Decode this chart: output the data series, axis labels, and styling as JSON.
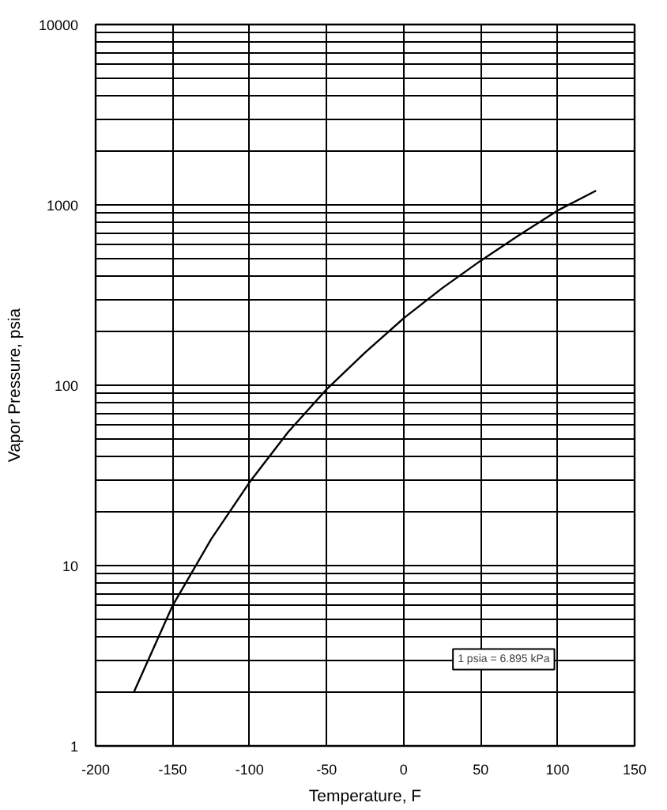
{
  "chart_data": {
    "type": "line",
    "xlabel": "Temperature, F",
    "ylabel": "Vapor Pressure, psia",
    "annotations": [
      "1 psia = 6.895 kPa"
    ],
    "x": [
      -175,
      -150,
      -125,
      -100,
      -75,
      -50,
      -25,
      0,
      25,
      50,
      75,
      100,
      125
    ],
    "series": [
      {
        "color": "#000000",
        "values": [
          2,
          6,
          14,
          29,
          55,
          95,
          152,
          235,
          345,
          490,
          680,
          930,
          1200
        ]
      }
    ],
    "xlim": [
      -200,
      150
    ],
    "xticks": [
      -200,
      -150,
      -100,
      -50,
      0,
      50,
      100,
      150
    ],
    "ylim": [
      1,
      10000
    ],
    "yticks": [
      1,
      {
        "value": 2,
        "label": null
      },
      {
        "value": 3,
        "label": null
      },
      {
        "value": 4,
        "label": null
      },
      {
        "value": 5,
        "label": null
      },
      {
        "value": 6,
        "label": null
      },
      {
        "value": 7,
        "label": null
      },
      {
        "value": 8,
        "label": null
      },
      {
        "value": 9,
        "label": null
      },
      10,
      {
        "value": 20,
        "label": null
      },
      {
        "value": 30,
        "label": null
      },
      {
        "value": 40,
        "label": null
      },
      {
        "value": 50,
        "label": null
      },
      {
        "value": 60,
        "label": null
      },
      {
        "value": 70,
        "label": null
      },
      {
        "value": 80,
        "label": null
      },
      {
        "value": 90,
        "label": null
      },
      100,
      {
        "value": 200,
        "label": null
      },
      {
        "value": 300,
        "label": null
      },
      {
        "value": 400,
        "label": null
      },
      {
        "value": 500,
        "label": null
      },
      {
        "value": 600,
        "label": null
      },
      {
        "value": 700,
        "label": null
      },
      {
        "value": 800,
        "label": null
      },
      {
        "value": 900,
        "label": null
      },
      1000,
      {
        "value": 2000,
        "label": null
      },
      {
        "value": 3000,
        "label": null
      },
      {
        "value": 4000,
        "label": null
      },
      {
        "value": 5000,
        "label": null
      },
      {
        "value": 6000,
        "label": null
      },
      {
        "value": 7000,
        "label": null
      },
      {
        "value": 8000,
        "label": null
      },
      {
        "value": 9000,
        "label": null
      },
      10000
    ],
    "log": "y",
    "grid": true,
    "line_style": "solid"
  }
}
